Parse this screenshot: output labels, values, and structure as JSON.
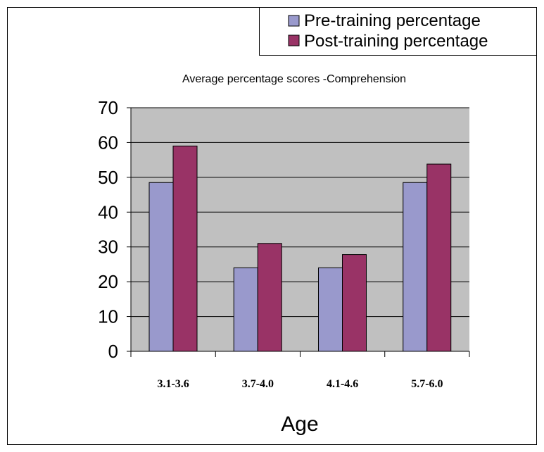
{
  "chart_data": {
    "type": "bar",
    "title": "Average percentage scores -Comprehension",
    "xlabel": "Age",
    "ylabel": "",
    "categories": [
      "3.1-3.6",
      "3.7-4.0",
      "4.1-4.6",
      "5.7-6.0"
    ],
    "series": [
      {
        "name": "Pre-training percentage",
        "color": "#9999CC",
        "values": [
          48.5,
          24,
          24,
          48.5
        ]
      },
      {
        "name": "Post-training percentage",
        "color": "#993366",
        "values": [
          59,
          31,
          27.8,
          53.8
        ]
      }
    ],
    "ylim": [
      0,
      70
    ],
    "yticks": [
      "0",
      "10",
      "20",
      "30",
      "40",
      "50",
      "60",
      "70"
    ],
    "grid": true,
    "plot_background": "#C0C0C0",
    "legend_position": "top-right"
  }
}
